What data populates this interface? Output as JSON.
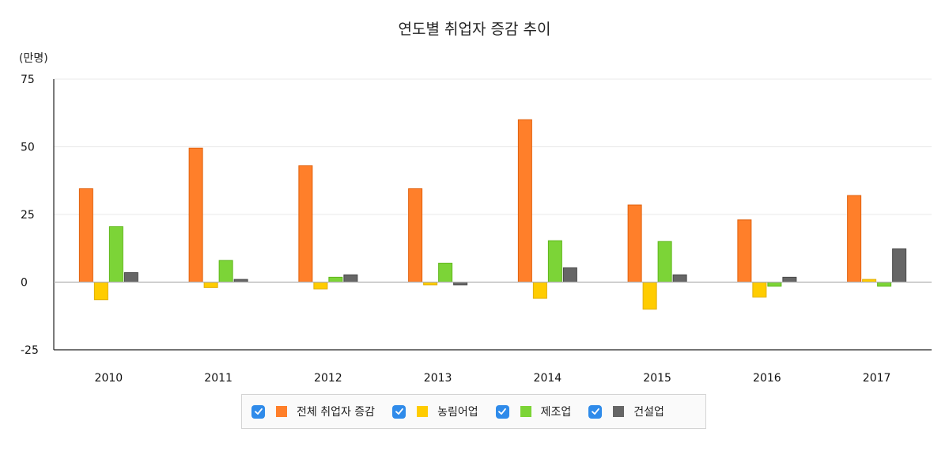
{
  "chart_data": {
    "type": "bar",
    "title": "연도별 취업자 증감 추이",
    "ylabel": "(만명)",
    "xlabel": "",
    "ylim": [
      -25,
      75
    ],
    "yticks": [
      75,
      50,
      25,
      0,
      -25
    ],
    "grid": true,
    "legend_position": "bottom",
    "categories": [
      "2010",
      "2011",
      "2012",
      "2013",
      "2014",
      "2015",
      "2016",
      "2017"
    ],
    "series": [
      {
        "name": "전체 취업자 증감",
        "color": "#ff7f2a",
        "values": [
          34.5,
          49.5,
          43,
          34.5,
          60,
          28.5,
          23,
          32
        ]
      },
      {
        "name": "농림어업",
        "color": "#ffcc00",
        "values": [
          -6.5,
          -2,
          -2.5,
          -1,
          -6,
          -10,
          -5.5,
          1
        ]
      },
      {
        "name": "제조업",
        "color": "#7cd437",
        "values": [
          20.5,
          8,
          1.8,
          7,
          15.3,
          15,
          -1.5,
          -1.5
        ]
      },
      {
        "name": "건설업",
        "color": "#666666",
        "values": [
          3.5,
          1,
          2.7,
          -1,
          5.3,
          2.7,
          1.8,
          12.3
        ]
      }
    ]
  },
  "legend": {
    "check_icon": "checkbox-checked-icon",
    "check_color": "#2f8bea"
  }
}
